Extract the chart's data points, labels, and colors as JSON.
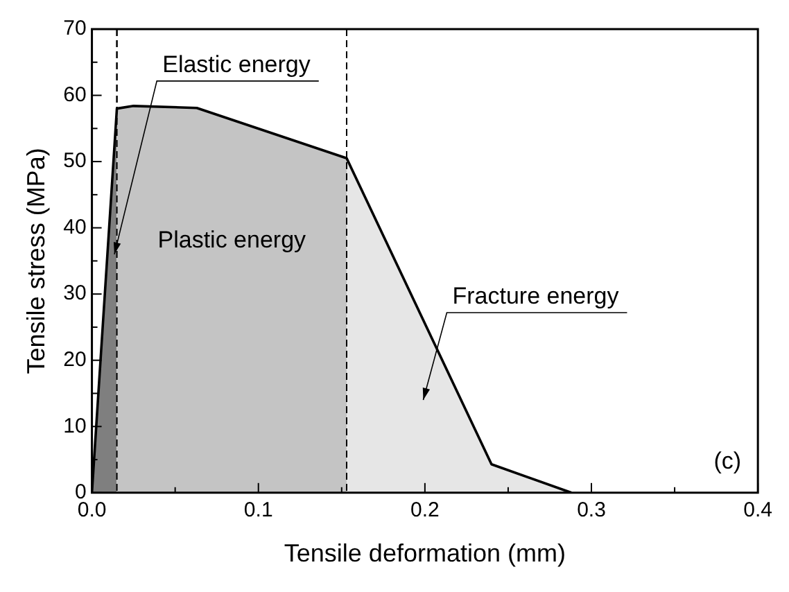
{
  "chart_data": {
    "type": "area",
    "xlabel": "Tensile deformation (mm)",
    "ylabel": "Tensile stress (MPa)",
    "xlim": [
      0,
      0.4
    ],
    "ylim": [
      0,
      70
    ],
    "xticks": [
      {
        "value": 0,
        "label": "0.0"
      },
      {
        "value": 0.05,
        "label": null
      },
      0.1,
      {
        "value": 0.15,
        "label": null
      },
      0.2,
      {
        "value": 0.25,
        "label": null
      },
      0.3,
      {
        "value": 0.35,
        "label": null
      },
      0.4
    ],
    "yticks": [
      0,
      {
        "value": 5,
        "label": null
      },
      10,
      {
        "value": 15,
        "label": null
      },
      20,
      {
        "value": 25,
        "label": null
      },
      30,
      {
        "value": 35,
        "label": null
      },
      40,
      {
        "value": 45,
        "label": null
      },
      50,
      {
        "value": 55,
        "label": null
      },
      60,
      {
        "value": 65,
        "label": null
      },
      70
    ],
    "grid": false,
    "legend": false,
    "series": [
      {
        "color": "#7f7f7f",
        "x": [
          0,
          0.015
        ],
        "values": [
          0,
          58
        ]
      },
      {
        "color": "#c4c4c4",
        "x": [
          0.015,
          0.025,
          0.063,
          0.153
        ],
        "values": [
          58,
          58.4,
          58.1,
          50.5
        ]
      },
      {
        "color": "#e6e6e6",
        "x": [
          0.153,
          0.24,
          0.288
        ],
        "values": [
          50.5,
          4.3,
          0
        ]
      },
      {
        "type": "line",
        "color": "#000000",
        "x": [
          0,
          0.015,
          0.025,
          0.063,
          0.153,
          0.24,
          0.288
        ],
        "values": [
          0,
          58,
          58.4,
          58.1,
          50.5,
          4.3,
          0
        ]
      }
    ],
    "ref_lines": [
      {
        "axis": "x",
        "value": 0.015,
        "color": "#000000",
        "line_style": "dashed"
      },
      {
        "axis": "x",
        "value": 0.153,
        "color": "#000000",
        "line_style": "dashed"
      }
    ],
    "annotations": [
      "Elastic energy",
      "Plastic energy",
      "Fracture energy",
      "(c)"
    ]
  }
}
